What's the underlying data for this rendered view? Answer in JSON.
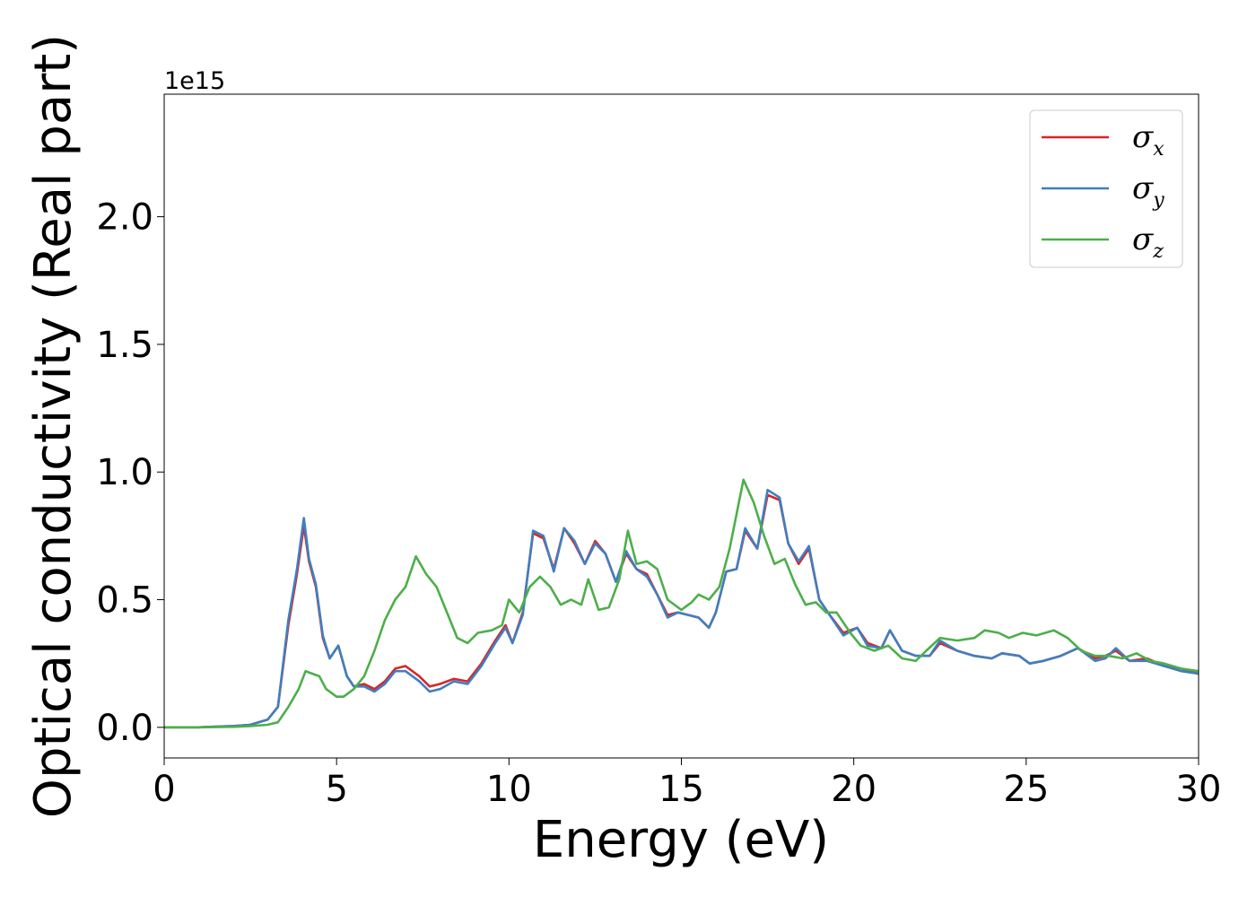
{
  "chart_data": {
    "type": "line",
    "xlabel": "Energy (eV)",
    "ylabel": "Optical conductivity (Real part)",
    "y_offset_label": "1e15",
    "xlim": [
      0,
      30
    ],
    "ylim": [
      -0.12,
      2.48
    ],
    "x_ticks": [
      0,
      5,
      10,
      15,
      20,
      25,
      30
    ],
    "x_tick_labels": [
      "0",
      "5",
      "10",
      "15",
      "20",
      "25",
      "30"
    ],
    "y_ticks": [
      0.0,
      0.5,
      1.0,
      1.5,
      2.0
    ],
    "y_tick_labels": [
      "0.0",
      "0.5",
      "1.0",
      "1.5",
      "2.0"
    ],
    "grid": false,
    "legend_position": "top-right",
    "series": [
      {
        "name": "σx",
        "symbol": "σ",
        "subscript": "x",
        "color": "#d62728",
        "points": [
          [
            0,
            0
          ],
          [
            1,
            0
          ],
          [
            2,
            0.005
          ],
          [
            2.5,
            0.01
          ],
          [
            3,
            0.03
          ],
          [
            3.3,
            0.08
          ],
          [
            3.6,
            0.4
          ],
          [
            3.85,
            0.6
          ],
          [
            4.05,
            0.79
          ],
          [
            4.2,
            0.65
          ],
          [
            4.4,
            0.55
          ],
          [
            4.6,
            0.35
          ],
          [
            4.8,
            0.27
          ],
          [
            5.05,
            0.32
          ],
          [
            5.3,
            0.2
          ],
          [
            5.5,
            0.16
          ],
          [
            5.8,
            0.17
          ],
          [
            6.1,
            0.15
          ],
          [
            6.4,
            0.18
          ],
          [
            6.7,
            0.23
          ],
          [
            7.0,
            0.24
          ],
          [
            7.4,
            0.2
          ],
          [
            7.7,
            0.16
          ],
          [
            8.0,
            0.17
          ],
          [
            8.4,
            0.19
          ],
          [
            8.8,
            0.18
          ],
          [
            9.2,
            0.25
          ],
          [
            9.6,
            0.34
          ],
          [
            9.9,
            0.4
          ],
          [
            10.1,
            0.33
          ],
          [
            10.4,
            0.45
          ],
          [
            10.7,
            0.76
          ],
          [
            11.0,
            0.74
          ],
          [
            11.3,
            0.62
          ],
          [
            11.6,
            0.78
          ],
          [
            11.9,
            0.72
          ],
          [
            12.2,
            0.64
          ],
          [
            12.5,
            0.73
          ],
          [
            12.8,
            0.68
          ],
          [
            13.1,
            0.57
          ],
          [
            13.4,
            0.68
          ],
          [
            13.7,
            0.62
          ],
          [
            14.0,
            0.6
          ],
          [
            14.3,
            0.52
          ],
          [
            14.6,
            0.44
          ],
          [
            14.9,
            0.45
          ],
          [
            15.2,
            0.44
          ],
          [
            15.5,
            0.43
          ],
          [
            15.8,
            0.39
          ],
          [
            16.0,
            0.45
          ],
          [
            16.3,
            0.61
          ],
          [
            16.6,
            0.62
          ],
          [
            16.85,
            0.77
          ],
          [
            17.2,
            0.7
          ],
          [
            17.5,
            0.91
          ],
          [
            17.85,
            0.89
          ],
          [
            18.1,
            0.72
          ],
          [
            18.4,
            0.64
          ],
          [
            18.7,
            0.7
          ],
          [
            19.0,
            0.5
          ],
          [
            19.3,
            0.44
          ],
          [
            19.7,
            0.37
          ],
          [
            20.1,
            0.39
          ],
          [
            20.4,
            0.33
          ],
          [
            20.8,
            0.31
          ],
          [
            21.05,
            0.38
          ],
          [
            21.4,
            0.3
          ],
          [
            21.8,
            0.28
          ],
          [
            22.2,
            0.28
          ],
          [
            22.5,
            0.33
          ],
          [
            23.0,
            0.3
          ],
          [
            23.5,
            0.28
          ],
          [
            24.0,
            0.27
          ],
          [
            24.3,
            0.29
          ],
          [
            24.8,
            0.28
          ],
          [
            25.1,
            0.25
          ],
          [
            25.5,
            0.26
          ],
          [
            26.0,
            0.28
          ],
          [
            26.5,
            0.31
          ],
          [
            27.0,
            0.27
          ],
          [
            27.3,
            0.28
          ],
          [
            27.6,
            0.3
          ],
          [
            28.0,
            0.26
          ],
          [
            28.5,
            0.27
          ],
          [
            29.0,
            0.24
          ],
          [
            29.5,
            0.23
          ],
          [
            30.0,
            0.21
          ]
        ]
      },
      {
        "name": "σy",
        "symbol": "σ",
        "subscript": "y",
        "color": "#3f7fbf",
        "points": [
          [
            0,
            0
          ],
          [
            1,
            0
          ],
          [
            2,
            0.005
          ],
          [
            2.5,
            0.01
          ],
          [
            3,
            0.03
          ],
          [
            3.3,
            0.08
          ],
          [
            3.6,
            0.42
          ],
          [
            3.85,
            0.62
          ],
          [
            4.05,
            0.82
          ],
          [
            4.2,
            0.66
          ],
          [
            4.4,
            0.56
          ],
          [
            4.6,
            0.36
          ],
          [
            4.8,
            0.27
          ],
          [
            5.05,
            0.32
          ],
          [
            5.3,
            0.2
          ],
          [
            5.5,
            0.16
          ],
          [
            5.8,
            0.16
          ],
          [
            6.1,
            0.14
          ],
          [
            6.4,
            0.17
          ],
          [
            6.7,
            0.22
          ],
          [
            7.0,
            0.22
          ],
          [
            7.4,
            0.18
          ],
          [
            7.7,
            0.14
          ],
          [
            8.0,
            0.15
          ],
          [
            8.4,
            0.18
          ],
          [
            8.8,
            0.17
          ],
          [
            9.2,
            0.24
          ],
          [
            9.6,
            0.33
          ],
          [
            9.9,
            0.39
          ],
          [
            10.1,
            0.33
          ],
          [
            10.4,
            0.44
          ],
          [
            10.7,
            0.77
          ],
          [
            11.0,
            0.75
          ],
          [
            11.3,
            0.61
          ],
          [
            11.6,
            0.78
          ],
          [
            11.9,
            0.73
          ],
          [
            12.2,
            0.64
          ],
          [
            12.5,
            0.72
          ],
          [
            12.8,
            0.68
          ],
          [
            13.1,
            0.57
          ],
          [
            13.4,
            0.69
          ],
          [
            13.7,
            0.62
          ],
          [
            14.0,
            0.59
          ],
          [
            14.3,
            0.52
          ],
          [
            14.6,
            0.43
          ],
          [
            14.9,
            0.45
          ],
          [
            15.2,
            0.44
          ],
          [
            15.5,
            0.43
          ],
          [
            15.8,
            0.39
          ],
          [
            16.0,
            0.45
          ],
          [
            16.3,
            0.61
          ],
          [
            16.6,
            0.62
          ],
          [
            16.85,
            0.78
          ],
          [
            17.2,
            0.7
          ],
          [
            17.5,
            0.93
          ],
          [
            17.85,
            0.9
          ],
          [
            18.1,
            0.72
          ],
          [
            18.4,
            0.65
          ],
          [
            18.7,
            0.71
          ],
          [
            19.0,
            0.5
          ],
          [
            19.3,
            0.44
          ],
          [
            19.7,
            0.36
          ],
          [
            20.1,
            0.39
          ],
          [
            20.4,
            0.32
          ],
          [
            20.8,
            0.31
          ],
          [
            21.05,
            0.38
          ],
          [
            21.4,
            0.3
          ],
          [
            21.8,
            0.28
          ],
          [
            22.2,
            0.28
          ],
          [
            22.5,
            0.34
          ],
          [
            23.0,
            0.3
          ],
          [
            23.5,
            0.28
          ],
          [
            24.0,
            0.27
          ],
          [
            24.3,
            0.29
          ],
          [
            24.8,
            0.28
          ],
          [
            25.1,
            0.25
          ],
          [
            25.5,
            0.26
          ],
          [
            26.0,
            0.28
          ],
          [
            26.5,
            0.31
          ],
          [
            27.0,
            0.26
          ],
          [
            27.3,
            0.27
          ],
          [
            27.6,
            0.31
          ],
          [
            28.0,
            0.26
          ],
          [
            28.5,
            0.26
          ],
          [
            29.0,
            0.24
          ],
          [
            29.5,
            0.22
          ],
          [
            30.0,
            0.21
          ]
        ]
      },
      {
        "name": "σz",
        "symbol": "σ",
        "subscript": "z",
        "color": "#4daf4a",
        "points": [
          [
            0,
            0
          ],
          [
            1,
            0
          ],
          [
            2,
            0.002
          ],
          [
            2.5,
            0.005
          ],
          [
            3,
            0.01
          ],
          [
            3.3,
            0.02
          ],
          [
            3.6,
            0.08
          ],
          [
            3.9,
            0.15
          ],
          [
            4.1,
            0.22
          ],
          [
            4.3,
            0.21
          ],
          [
            4.5,
            0.2
          ],
          [
            4.7,
            0.15
          ],
          [
            5.0,
            0.12
          ],
          [
            5.2,
            0.12
          ],
          [
            5.5,
            0.15
          ],
          [
            5.8,
            0.2
          ],
          [
            6.1,
            0.3
          ],
          [
            6.4,
            0.42
          ],
          [
            6.7,
            0.5
          ],
          [
            7.0,
            0.55
          ],
          [
            7.3,
            0.67
          ],
          [
            7.6,
            0.6
          ],
          [
            7.9,
            0.55
          ],
          [
            8.2,
            0.45
          ],
          [
            8.5,
            0.35
          ],
          [
            8.8,
            0.33
          ],
          [
            9.1,
            0.37
          ],
          [
            9.5,
            0.38
          ],
          [
            9.8,
            0.4
          ],
          [
            10.0,
            0.5
          ],
          [
            10.3,
            0.45
          ],
          [
            10.6,
            0.55
          ],
          [
            10.9,
            0.59
          ],
          [
            11.2,
            0.55
          ],
          [
            11.5,
            0.48
          ],
          [
            11.8,
            0.5
          ],
          [
            12.1,
            0.48
          ],
          [
            12.3,
            0.58
          ],
          [
            12.6,
            0.46
          ],
          [
            12.9,
            0.47
          ],
          [
            13.2,
            0.58
          ],
          [
            13.45,
            0.77
          ],
          [
            13.7,
            0.64
          ],
          [
            14.0,
            0.65
          ],
          [
            14.3,
            0.62
          ],
          [
            14.6,
            0.5
          ],
          [
            15.0,
            0.46
          ],
          [
            15.3,
            0.49
          ],
          [
            15.5,
            0.52
          ],
          [
            15.8,
            0.5
          ],
          [
            16.1,
            0.55
          ],
          [
            16.4,
            0.7
          ],
          [
            16.8,
            0.97
          ],
          [
            17.1,
            0.88
          ],
          [
            17.4,
            0.75
          ],
          [
            17.7,
            0.64
          ],
          [
            18.0,
            0.66
          ],
          [
            18.3,
            0.56
          ],
          [
            18.6,
            0.48
          ],
          [
            18.9,
            0.49
          ],
          [
            19.2,
            0.45
          ],
          [
            19.5,
            0.45
          ],
          [
            19.9,
            0.37
          ],
          [
            20.2,
            0.32
          ],
          [
            20.6,
            0.3
          ],
          [
            21.0,
            0.32
          ],
          [
            21.4,
            0.27
          ],
          [
            21.8,
            0.26
          ],
          [
            22.1,
            0.3
          ],
          [
            22.5,
            0.35
          ],
          [
            23.0,
            0.34
          ],
          [
            23.5,
            0.35
          ],
          [
            23.8,
            0.38
          ],
          [
            24.2,
            0.37
          ],
          [
            24.5,
            0.35
          ],
          [
            24.9,
            0.37
          ],
          [
            25.3,
            0.36
          ],
          [
            25.8,
            0.38
          ],
          [
            26.2,
            0.35
          ],
          [
            26.6,
            0.3
          ],
          [
            27.0,
            0.28
          ],
          [
            27.4,
            0.28
          ],
          [
            27.8,
            0.27
          ],
          [
            28.2,
            0.29
          ],
          [
            28.6,
            0.26
          ],
          [
            29.0,
            0.25
          ],
          [
            29.5,
            0.23
          ],
          [
            30.0,
            0.22
          ]
        ]
      }
    ]
  }
}
